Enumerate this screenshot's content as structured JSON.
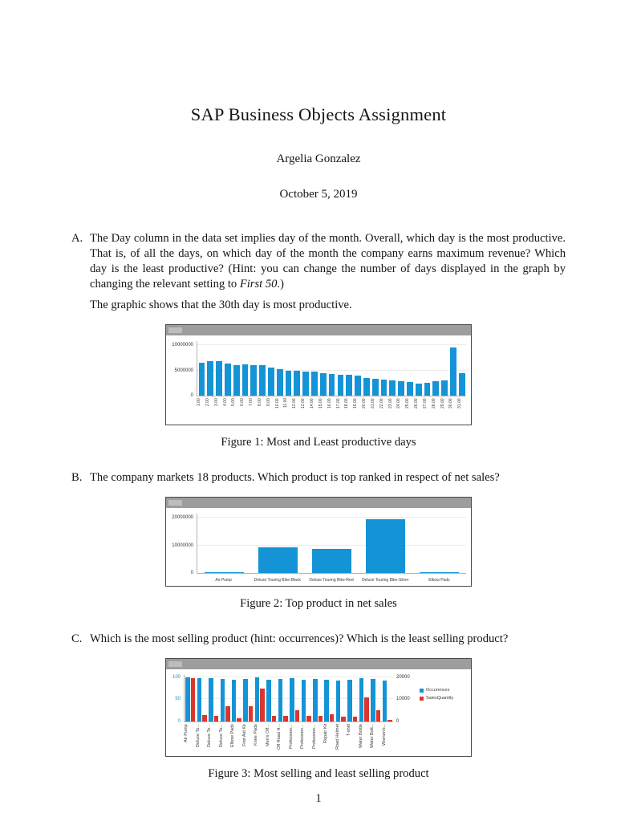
{
  "document": {
    "title": "SAP Business Objects Assignment",
    "author": "Argelia Gonzalez",
    "date": "October 5, 2019",
    "page_number": "1"
  },
  "questions": {
    "a": {
      "label": "A.",
      "text_before": "The Day column in the data set implies day of the month. Overall, which day is the most productive. That is, of all the days, on which day of the month the company earns maximum revenue? Which day is the least productive? (Hint: you can change the number of days displayed in the graph by changing the relevant setting to ",
      "text_italic": "First 50.",
      "text_close": ")",
      "answer": "The graphic shows that the 30th day is most productive."
    },
    "b": {
      "label": "B.",
      "text": "The company markets 18 products. Which product is top ranked in respect of net sales?"
    },
    "c": {
      "label": "C.",
      "text": "Which is the most selling product (hint: occurrences)? Which is the least selling product?"
    }
  },
  "figures": {
    "fig1": {
      "caption": "Figure 1: Most and Least productive days"
    },
    "fig2": {
      "caption": "Figure 2: Top product in net sales"
    },
    "fig3": {
      "caption": "Figure 3: Most selling and least selling product"
    }
  },
  "chart_data": [
    {
      "type": "bar",
      "title": "Revenue by day of month",
      "categories": [
        "1.00",
        "2.00",
        "3.00",
        "4.00",
        "5.00",
        "6.00",
        "7.00",
        "8.00",
        "9.00",
        "10.00",
        "11.00",
        "12.00",
        "13.00",
        "14.00",
        "15.00",
        "16.00",
        "17.00",
        "18.00",
        "19.00",
        "20.00",
        "21.00",
        "22.00",
        "23.00",
        "24.00",
        "25.00",
        "26.00",
        "27.00",
        "28.00",
        "29.00",
        "30.00",
        "31.00"
      ],
      "values": [
        6500000,
        6900000,
        6800000,
        6300000,
        6100000,
        6200000,
        6000000,
        6000000,
        5600000,
        5200000,
        5000000,
        4900000,
        4800000,
        4700000,
        4500000,
        4300000,
        4100000,
        4200000,
        3900000,
        3500000,
        3300000,
        3100000,
        3000000,
        2900000,
        2700000,
        2400000,
        2500000,
        2800000,
        3000000,
        9500000,
        4500000
      ],
      "ylim": [
        0,
        10800000
      ],
      "yticks": [
        0,
        5000000,
        10000000
      ],
      "bar_color": "#1494d6",
      "tick_color": "#333333",
      "grid": true,
      "legend_position": "none"
    },
    {
      "type": "bar",
      "title": "Net sales by product",
      "categories": [
        "Air Pump",
        "Deluxe Touring Bike-Black",
        "Deluxe Touring Bike-Red",
        "Deluxe Touring Bike-Silver",
        "Elbow Pads"
      ],
      "values": [
        300000,
        9200000,
        8600000,
        19500000,
        250000
      ],
      "ylim": [
        0,
        21500000
      ],
      "yticks": [
        0,
        10000000,
        20000000
      ],
      "bar_color": "#1494d6",
      "tick_color": "#333333",
      "grid": true,
      "legend_position": "none"
    },
    {
      "type": "bar",
      "title": "Occurrences and sales quantity by product",
      "categories": [
        "Air Pump",
        "Deluxe To...",
        "Deluxe To...",
        "Deluxe To...",
        "Elbow Pads",
        "First Aid Kit",
        "Knee Pads",
        "Men's Off...",
        "Off Road H...",
        "Profession...",
        "Profession...",
        "Profession...",
        "Repair Kit",
        "Road Helmet",
        "T-shirt",
        "Water Bottle",
        "Water Bott...",
        "Women's..."
      ],
      "series": [
        {
          "name": "Occurences",
          "color": "#1494d6",
          "axis": "left",
          "values": [
            100,
            97,
            98,
            96,
            95,
            96,
            99,
            94,
            96,
            97,
            95,
            96,
            94,
            93,
            95,
            98,
            96,
            92
          ]
        },
        {
          "name": "SalesQuantity",
          "color": "#d8372d",
          "axis": "right",
          "values": [
            19500,
            3000,
            2700,
            7000,
            1600,
            7000,
            15000,
            2400,
            2500,
            5200,
            2400,
            2400,
            3200,
            2300,
            2100,
            11000,
            5000,
            900
          ]
        }
      ],
      "ylim_left": [
        0,
        105
      ],
      "yticks_left": [
        0,
        50,
        100
      ],
      "ylim_right": [
        0,
        21000
      ],
      "yticks_right": [
        0,
        10000,
        20000
      ],
      "tick_color_left": "#1494d6",
      "tick_color_right": "#333333",
      "legend": [
        "Occurences",
        "SalesQuantity"
      ],
      "legend_position": "right",
      "grid": true
    }
  ]
}
